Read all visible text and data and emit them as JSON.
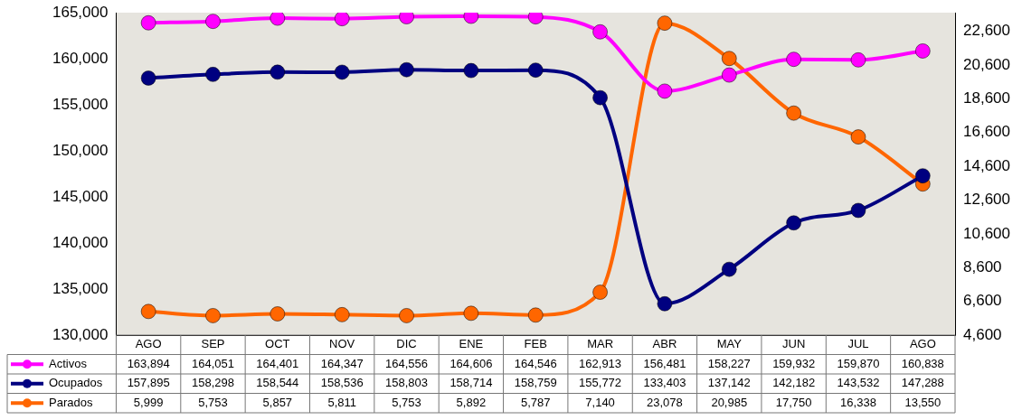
{
  "chart_data": {
    "type": "line",
    "categories": [
      "AGO",
      "SEP",
      "OCT",
      "NOV",
      "DIC",
      "ENE",
      "FEB",
      "MAR",
      "ABR",
      "MAY",
      "JUN",
      "JUL",
      "AGO"
    ],
    "series": [
      {
        "name": "Activos",
        "color": "#ff00ff",
        "values": [
          163894,
          164051,
          164401,
          164347,
          164556,
          164606,
          164546,
          162913,
          156481,
          158227,
          159932,
          159870,
          160838
        ],
        "value_labels": [
          "163,894",
          "164,051",
          "164,401",
          "164,347",
          "164,556",
          "164,606",
          "164,546",
          "162,913",
          "156,481",
          "158,227",
          "159,932",
          "159,870",
          "160,838"
        ]
      },
      {
        "name": "Ocupados",
        "color": "#000080",
        "values": [
          157895,
          158298,
          158544,
          158536,
          158803,
          158714,
          158759,
          155772,
          133403,
          137142,
          142182,
          143532,
          147288
        ],
        "value_labels": [
          "157,895",
          "158,298",
          "158,544",
          "158,536",
          "158,803",
          "158,714",
          "158,759",
          "155,772",
          "133,403",
          "137,142",
          "142,182",
          "143,532",
          "147,288"
        ]
      },
      {
        "name": "Parados",
        "color": "#ff6600",
        "axis": "y2",
        "values": [
          5999,
          5753,
          5857,
          5811,
          5753,
          5892,
          5787,
          7140,
          23078,
          20985,
          17750,
          16338,
          13550
        ],
        "value_labels": [
          "5,999",
          "5,753",
          "5,857",
          "5,811",
          "5,753",
          "5,892",
          "5,787",
          "7,140",
          "23,078",
          "20,985",
          "17,750",
          "16,338",
          "13,550"
        ]
      }
    ],
    "ylim": [
      130000,
      165000
    ],
    "yticks": [
      {
        "value": 130000,
        "label": "130,000"
      },
      {
        "value": 135000,
        "label": "135,000"
      },
      {
        "value": 140000,
        "label": "140,000"
      },
      {
        "value": 145000,
        "label": "145,000"
      },
      {
        "value": 150000,
        "label": "150,000"
      },
      {
        "value": 155000,
        "label": "155,000"
      },
      {
        "value": 160000,
        "label": "160,000"
      },
      {
        "value": 165000,
        "label": "165,000"
      }
    ],
    "y2lim": [
      4600,
      23700
    ],
    "y2ticks": [
      {
        "value": 4600,
        "label": "4,600"
      },
      {
        "value": 6600,
        "label": "6,600"
      },
      {
        "value": 8600,
        "label": "8,600"
      },
      {
        "value": 10600,
        "label": "10,600"
      },
      {
        "value": 12600,
        "label": "12,600"
      },
      {
        "value": 14600,
        "label": "14,600"
      },
      {
        "value": 16600,
        "label": "16,600"
      },
      {
        "value": 18600,
        "label": "18,600"
      },
      {
        "value": 20600,
        "label": "20,600"
      },
      {
        "value": 22600,
        "label": "22,600"
      }
    ],
    "grid": false,
    "legend": "bottom left",
    "marker": "circle",
    "line_style": "solid"
  }
}
